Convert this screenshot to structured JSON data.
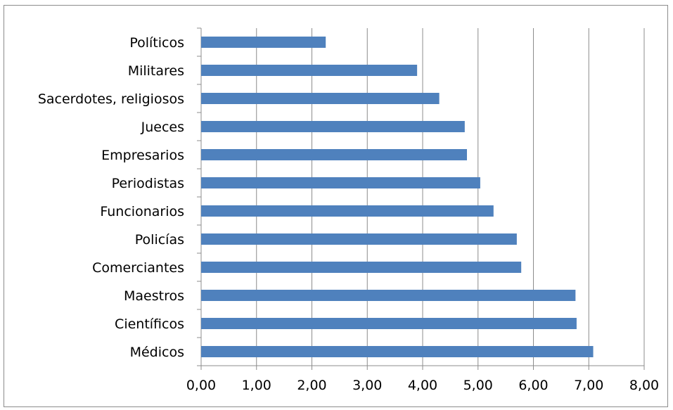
{
  "chart_data": {
    "type": "bar",
    "orientation": "horizontal",
    "categories": [
      "Políticos",
      "Militares",
      "Sacerdotes, religiosos",
      "Jueces",
      "Empresarios",
      "Periodistas",
      "Funcionarios",
      "Policías",
      "Comerciantes",
      "Maestros",
      "Científicos",
      "Médicos"
    ],
    "values": [
      2.25,
      3.9,
      4.3,
      4.76,
      4.8,
      5.04,
      5.28,
      5.7,
      5.78,
      6.76,
      6.78,
      7.08
    ],
    "xlim": [
      0,
      8
    ],
    "xticks": [
      "0,00",
      "1,00",
      "2,00",
      "3,00",
      "4,00",
      "5,00",
      "6,00",
      "7,00",
      "8,00"
    ],
    "grid": "vertical",
    "bar_color": "#4f81bd",
    "title": "",
    "xlabel": "",
    "ylabel": ""
  }
}
